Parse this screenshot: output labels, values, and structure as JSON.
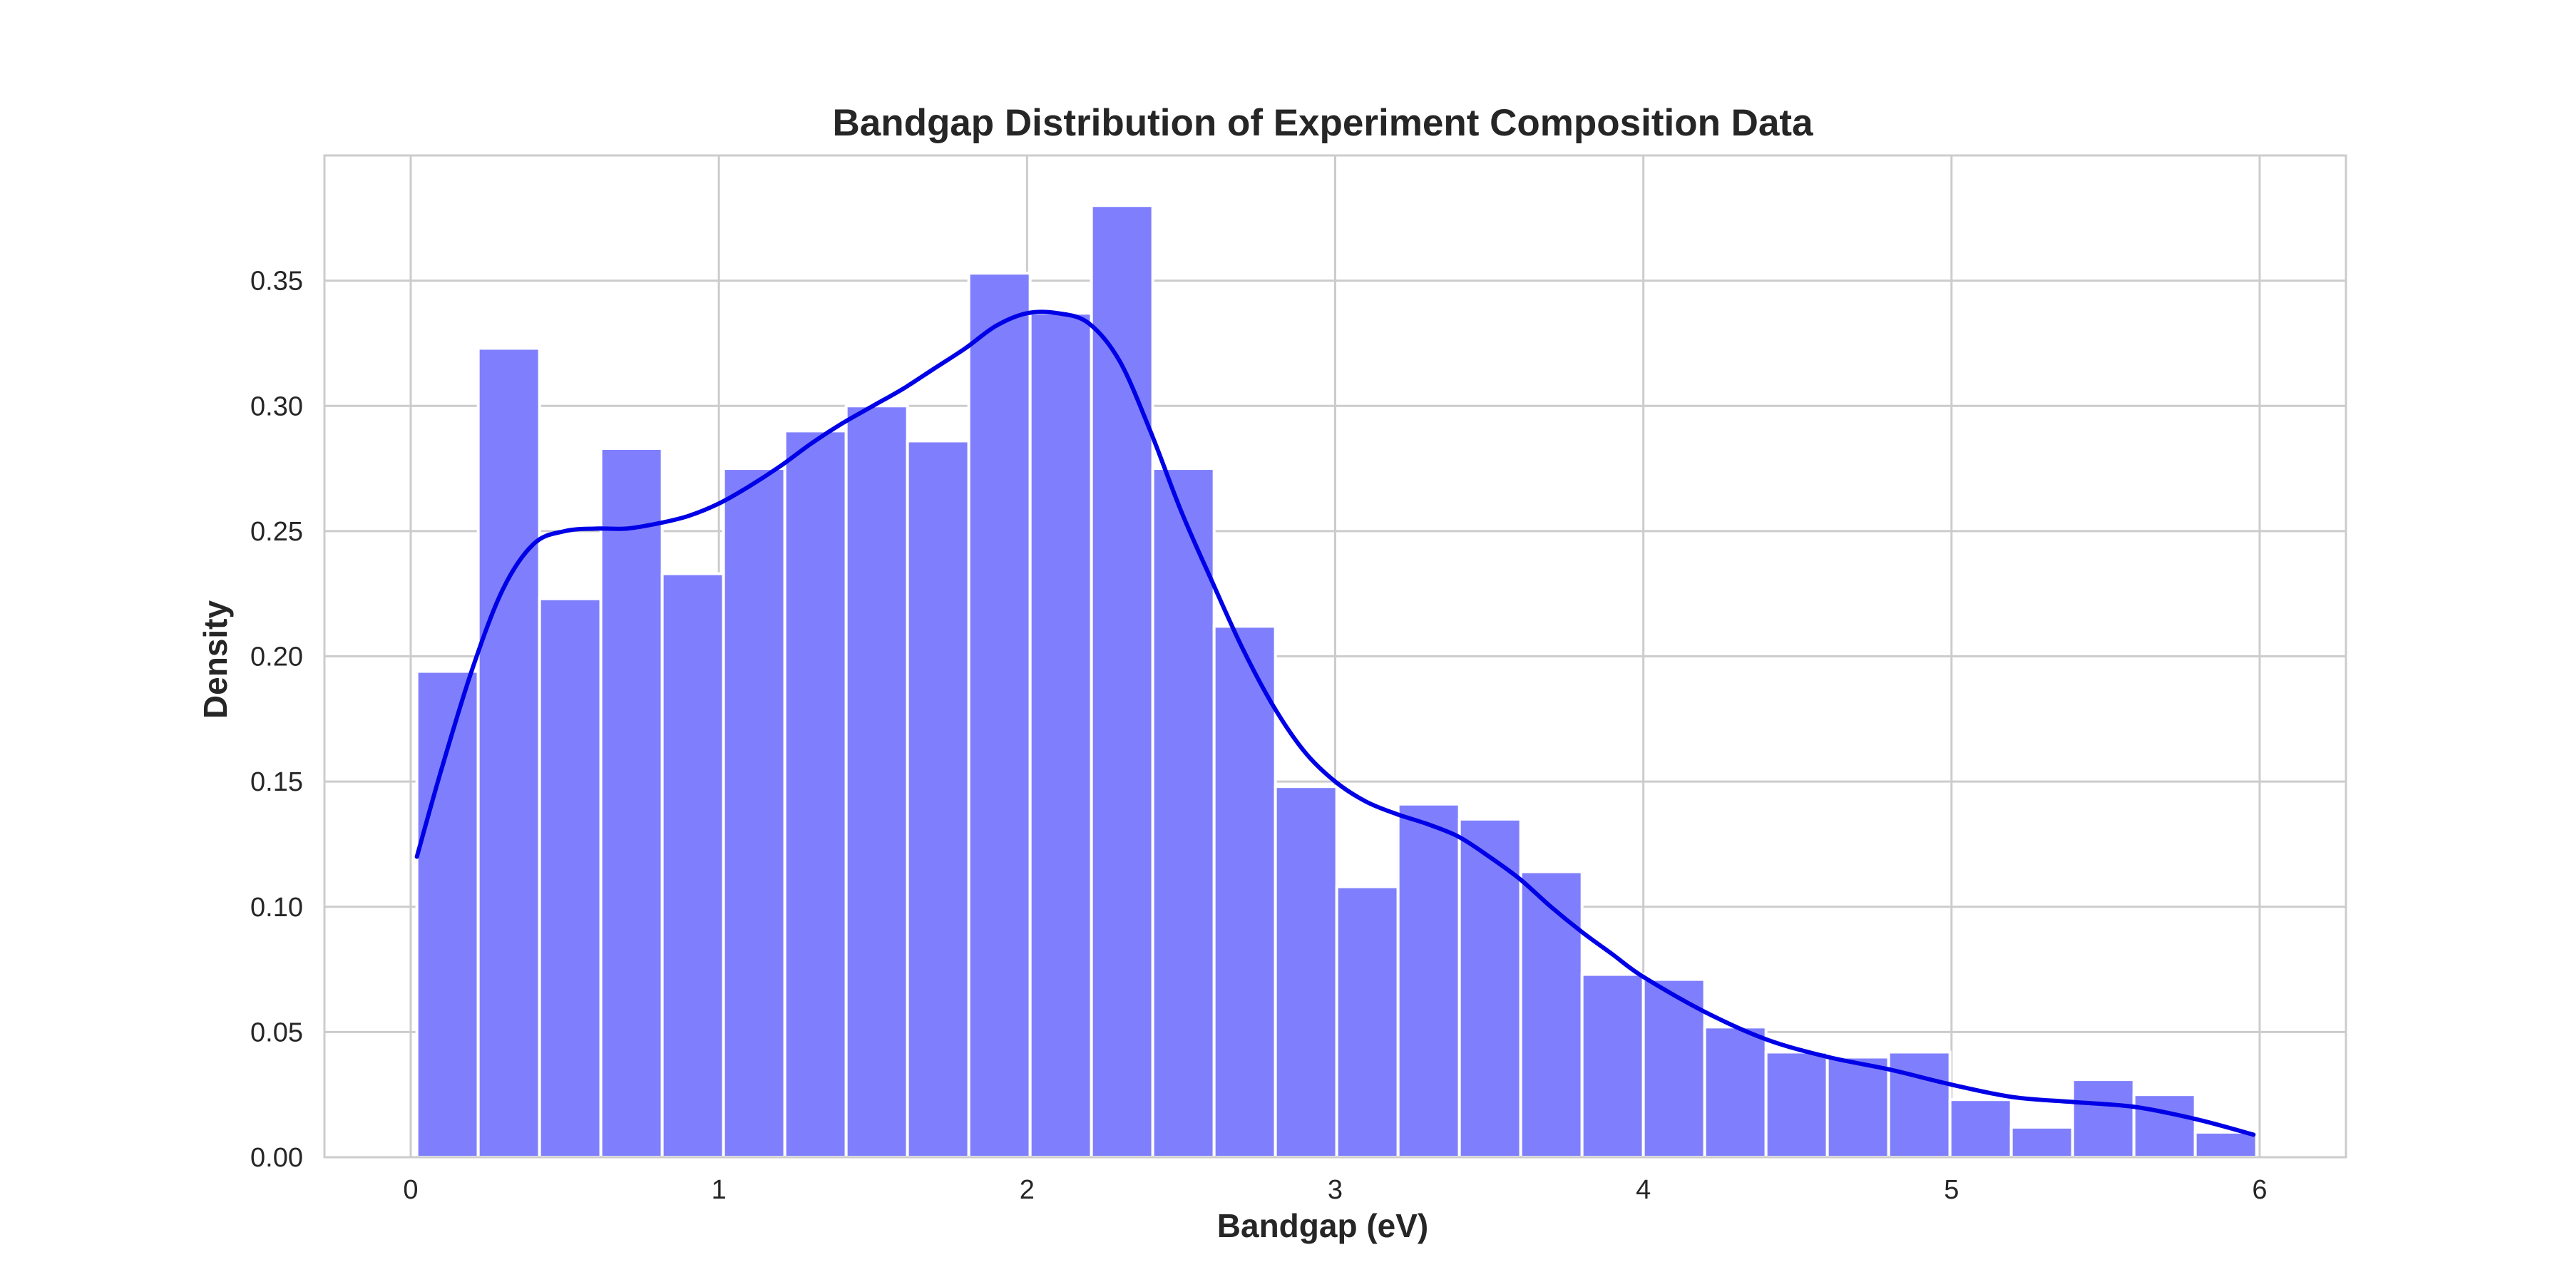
{
  "chart_data": {
    "type": "bar",
    "title": "Bandgap Distribution of Experiment Composition Data",
    "xlabel": "Bandgap (eV)",
    "ylabel": "Density",
    "xlim": [
      -0.28,
      6.28
    ],
    "ylim": [
      0,
      0.4
    ],
    "x_ticks": [
      "0",
      "1",
      "2",
      "3",
      "4",
      "5",
      "6"
    ],
    "y_ticks": [
      "0.00",
      "0.05",
      "0.10",
      "0.15",
      "0.20",
      "0.25",
      "0.30",
      "0.35"
    ],
    "grid": true,
    "bin_edges": [
      0.02,
      0.219,
      0.418,
      0.617,
      0.816,
      1.015,
      1.214,
      1.413,
      1.612,
      1.811,
      2.01,
      2.209,
      2.408,
      2.607,
      2.806,
      3.005,
      3.204,
      3.403,
      3.602,
      3.801,
      4.0,
      4.199,
      4.398,
      4.597,
      4.796,
      4.995,
      5.194,
      5.393,
      5.592,
      5.791,
      5.99
    ],
    "values": [
      0.194,
      0.323,
      0.223,
      0.283,
      0.233,
      0.275,
      0.29,
      0.3,
      0.286,
      0.353,
      0.337,
      0.38,
      0.275,
      0.212,
      0.148,
      0.108,
      0.141,
      0.135,
      0.114,
      0.073,
      0.071,
      0.052,
      0.042,
      0.04,
      0.042,
      0.023,
      0.012,
      0.031,
      0.025,
      0.01
    ],
    "kde": {
      "x": [
        0.02,
        0.1,
        0.2,
        0.3,
        0.4,
        0.5,
        0.6,
        0.7,
        0.8,
        0.9,
        1.0,
        1.1,
        1.2,
        1.3,
        1.4,
        1.5,
        1.6,
        1.7,
        1.8,
        1.9,
        2.0,
        2.1,
        2.2,
        2.3,
        2.4,
        2.5,
        2.6,
        2.7,
        2.8,
        2.9,
        3.0,
        3.1,
        3.2,
        3.3,
        3.4,
        3.5,
        3.6,
        3.7,
        3.8,
        3.9,
        4.0,
        4.2,
        4.4,
        4.6,
        4.8,
        5.0,
        5.2,
        5.4,
        5.6,
        5.8,
        5.98
      ],
      "y": [
        0.12,
        0.155,
        0.195,
        0.227,
        0.245,
        0.25,
        0.251,
        0.251,
        0.253,
        0.256,
        0.261,
        0.268,
        0.276,
        0.285,
        0.293,
        0.3,
        0.307,
        0.315,
        0.323,
        0.332,
        0.337,
        0.337,
        0.333,
        0.318,
        0.29,
        0.258,
        0.23,
        0.203,
        0.18,
        0.162,
        0.15,
        0.142,
        0.137,
        0.133,
        0.128,
        0.12,
        0.111,
        0.1,
        0.09,
        0.081,
        0.072,
        0.058,
        0.047,
        0.04,
        0.035,
        0.029,
        0.024,
        0.022,
        0.02,
        0.015,
        0.009
      ]
    },
    "colors": {
      "bars": "#7f7ffd",
      "kde": "#0000e6",
      "grid": "#cccccc"
    }
  }
}
